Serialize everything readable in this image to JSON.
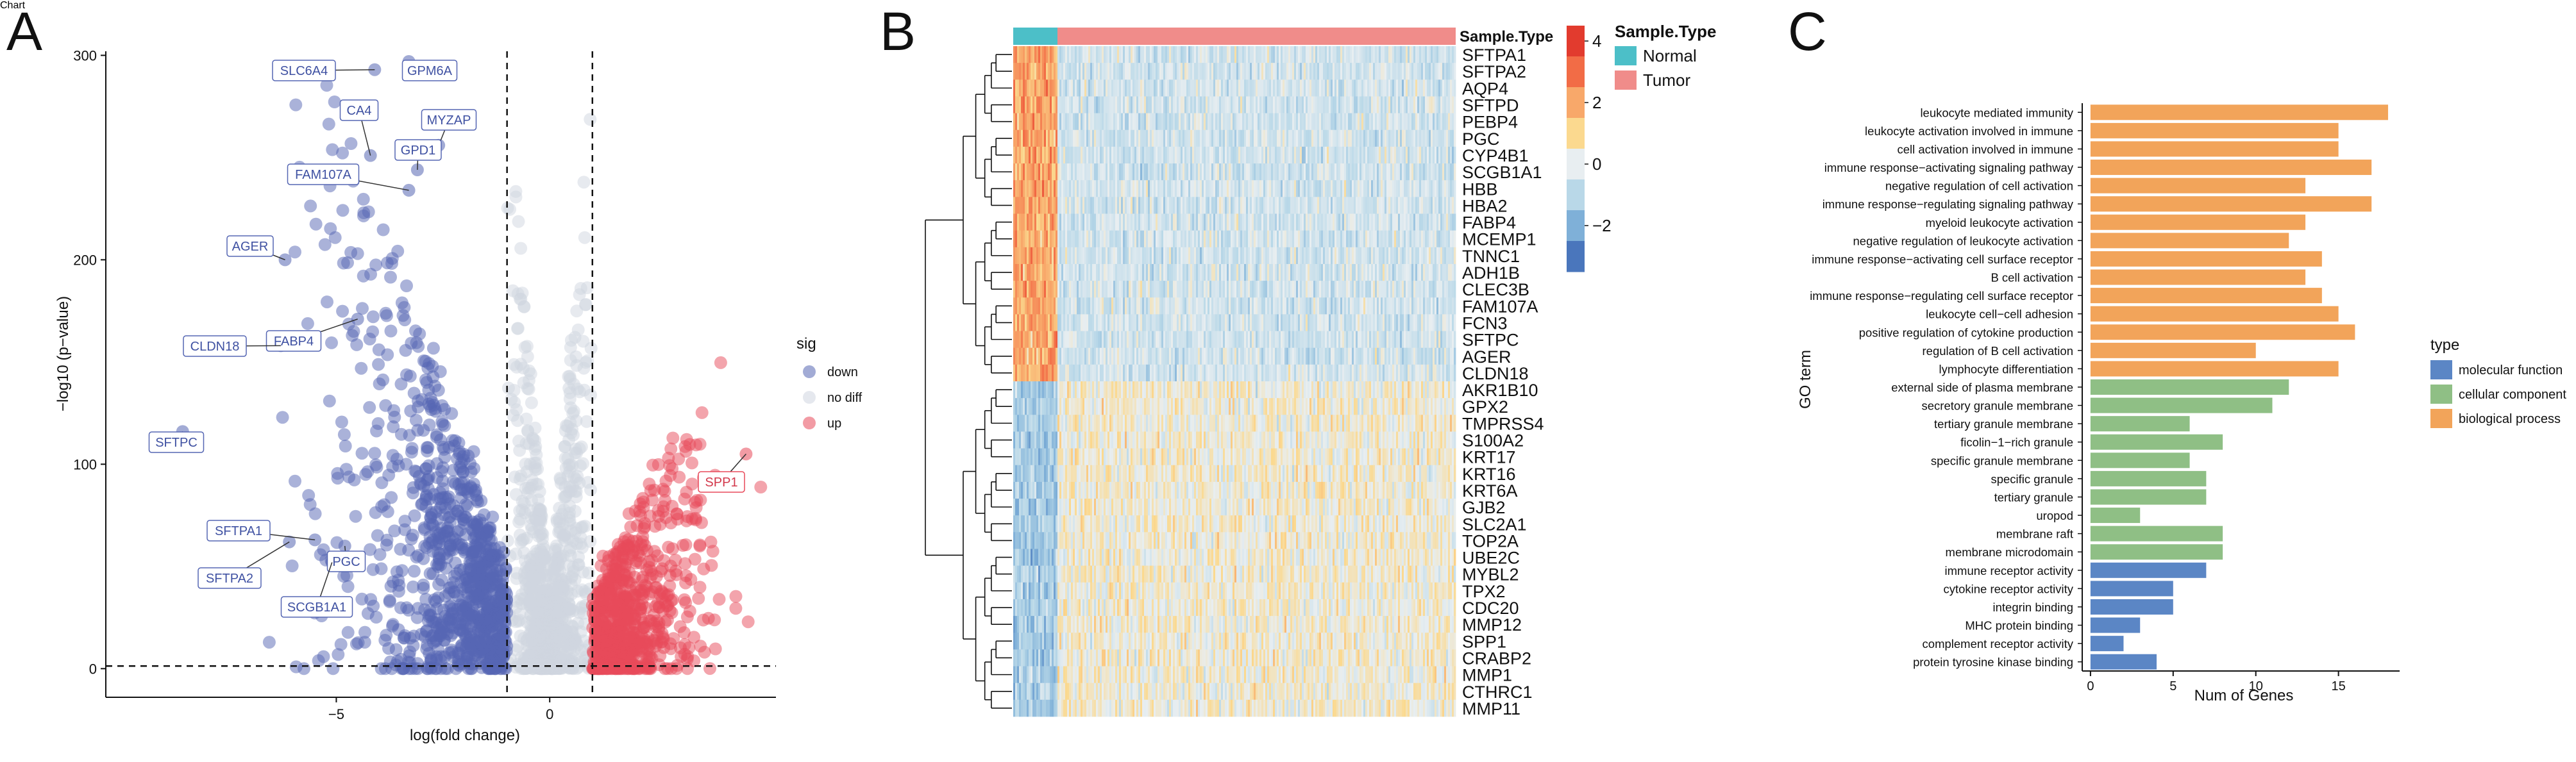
{
  "colors": {
    "down": "#5566b3",
    "nodiff": "#cfd6e0",
    "up": "#e8495a",
    "normal": "#4cbfc8",
    "tumor": "#f08c8a",
    "mf": "#5b86c5",
    "cc": "#8fbf85",
    "bp": "#f2a45a",
    "ink": "#111111"
  },
  "chart_data": [
    {
      "panel": "A",
      "type": "scatter",
      "title": "",
      "xlabel": "log(fold change)",
      "ylabel": "−log10 (p−value)",
      "xlim": [
        -10.4,
        5.3
      ],
      "ylim": [
        -14,
        302
      ],
      "xticks": [
        {
          "v": -5,
          "label": "−5"
        },
        {
          "v": 0,
          "label": "0"
        }
      ],
      "yticks": [
        0,
        100,
        200,
        300
      ],
      "thresholds": {
        "x": [
          -1,
          1
        ],
        "y": 1.3
      },
      "legend": {
        "title": "sig",
        "placement": "right",
        "entries": [
          {
            "key": "down",
            "label": "down"
          },
          {
            "key": "nodiff",
            "label": "no diff"
          },
          {
            "key": "up",
            "label": "up"
          }
        ]
      },
      "labeled_genes": [
        {
          "gene": "SLC6A4",
          "x": -4.1,
          "y": 293,
          "sig": "down"
        },
        {
          "gene": "GPM6A",
          "x": -3.3,
          "y": 297,
          "sig": "down"
        },
        {
          "gene": "CA4",
          "x": -4.2,
          "y": 251,
          "sig": "down"
        },
        {
          "gene": "MYZAP",
          "x": -2.6,
          "y": 256,
          "sig": "down"
        },
        {
          "gene": "GPD1",
          "x": -3.1,
          "y": 244,
          "sig": "down"
        },
        {
          "gene": "FAM107A",
          "x": -3.3,
          "y": 234,
          "sig": "down"
        },
        {
          "gene": "AGER",
          "x": -6.2,
          "y": 200,
          "sig": "down"
        },
        {
          "gene": "FABP4",
          "x": -4.5,
          "y": 171,
          "sig": "down"
        },
        {
          "gene": "CLDN18",
          "x": -6.3,
          "y": 158,
          "sig": "down"
        },
        {
          "gene": "SFTPC",
          "x": -8.6,
          "y": 116,
          "sig": "down"
        },
        {
          "gene": "SFTPA1",
          "x": -5.5,
          "y": 63,
          "sig": "down"
        },
        {
          "gene": "SFTPA2",
          "x": -6.1,
          "y": 62,
          "sig": "down"
        },
        {
          "gene": "PGC",
          "x": -4.8,
          "y": 60,
          "sig": "down"
        },
        {
          "gene": "SCGB1A1",
          "x": -5.1,
          "y": 52,
          "sig": "down"
        },
        {
          "gene": "SPP1",
          "x": 4.6,
          "y": 105,
          "sig": "up"
        }
      ],
      "label_text": [
        "SLC6A4",
        "GPM6A",
        "CA4",
        "MYZAP",
        "GPD1",
        "FAM107A",
        "AGER",
        "FABP4",
        "CLDN18",
        "SFTPC",
        "SFTPA1",
        "SFTPA2",
        "PGC",
        "SCGB1A1",
        "SPP1"
      ]
    },
    {
      "panel": "B",
      "type": "heatmap",
      "annotation_title": "Sample.Type",
      "annotation_groups": [
        {
          "key": "normal",
          "label": "Normal",
          "fraction": 0.1
        },
        {
          "key": "tumor",
          "label": "Tumor",
          "fraction": 0.9
        }
      ],
      "scale_ticks": [
        4,
        2,
        0,
        -2
      ],
      "scale_tick_labels": [
        "4",
        "2",
        "0",
        "−2"
      ],
      "scale_range": [
        -3.5,
        4.5
      ],
      "scale_stops": [
        "#e23b2e",
        "#f26c46",
        "#f8a86a",
        "#fbd98f",
        "#e8eef1",
        "#b9d8e8",
        "#7fb0d8",
        "#4a76bc"
      ],
      "genes_down": [
        "SFTPA1",
        "SFTPA2",
        "AQP4",
        "SFTPD",
        "PEBP4",
        "PGC",
        "CYP4B1",
        "SCGB1A1",
        "HBB",
        "HBA2",
        "FABP4",
        "MCEMP1",
        "TNNC1",
        "ADH1B",
        "CLEC3B",
        "FAM107A",
        "FCN3",
        "SFTPC",
        "AGER",
        "CLDN18"
      ],
      "genes_up": [
        "AKR1B10",
        "GPX2",
        "TMPRSS4",
        "S100A2",
        "KRT17",
        "KRT16",
        "KRT6A",
        "GJB2",
        "SLC2A1",
        "TOP2A",
        "UBE2C",
        "MYBL2",
        "TPX2",
        "CDC20",
        "MMP12",
        "SPP1",
        "CRABP2",
        "MMP1",
        "CTHRC1",
        "MMP11"
      ]
    },
    {
      "panel": "C",
      "type": "bar",
      "orientation": "horizontal",
      "xlabel": "Num of Genes",
      "ylabel": "GO term",
      "xlim": [
        -0.5,
        18.7
      ],
      "xticks": [
        0,
        5,
        10,
        15
      ],
      "legend": {
        "title": "type",
        "placement": "right",
        "entries": [
          {
            "key": "mf",
            "label": "molecular function"
          },
          {
            "key": "cc",
            "label": "cellular component"
          },
          {
            "key": "bp",
            "label": "biological process"
          }
        ]
      },
      "bars": [
        {
          "term": "leukocyte mediated immunity",
          "value": 18,
          "type": "bp"
        },
        {
          "term": "leukocyte activation involved in immune",
          "value": 15,
          "type": "bp"
        },
        {
          "term": "cell activation involved in immune",
          "value": 15,
          "type": "bp"
        },
        {
          "term": "immune response−activating signaling pathway",
          "value": 17,
          "type": "bp"
        },
        {
          "term": "negative regulation of cell activation",
          "value": 13,
          "type": "bp"
        },
        {
          "term": "immune response−regulating signaling pathway",
          "value": 17,
          "type": "bp"
        },
        {
          "term": "myeloid leukocyte activation",
          "value": 13,
          "type": "bp"
        },
        {
          "term": "negative regulation of leukocyte activation",
          "value": 12,
          "type": "bp"
        },
        {
          "term": "immune response−activating cell surface receptor",
          "value": 14,
          "type": "bp"
        },
        {
          "term": "B cell activation",
          "value": 13,
          "type": "bp"
        },
        {
          "term": "immune response−regulating cell surface receptor",
          "value": 14,
          "type": "bp"
        },
        {
          "term": "leukocyte cell−cell adhesion",
          "value": 15,
          "type": "bp"
        },
        {
          "term": "positive regulation of cytokine production",
          "value": 16,
          "type": "bp"
        },
        {
          "term": "regulation of B cell activation",
          "value": 10,
          "type": "bp"
        },
        {
          "term": "lymphocyte differentiation",
          "value": 15,
          "type": "bp"
        },
        {
          "term": "external side of plasma membrane",
          "value": 12,
          "type": "cc"
        },
        {
          "term": "secretory granule membrane",
          "value": 11,
          "type": "cc"
        },
        {
          "term": "tertiary granule membrane",
          "value": 6,
          "type": "cc"
        },
        {
          "term": "ficolin−1−rich granule",
          "value": 8,
          "type": "cc"
        },
        {
          "term": "specific granule membrane",
          "value": 6,
          "type": "cc"
        },
        {
          "term": "specific granule",
          "value": 7,
          "type": "cc"
        },
        {
          "term": "tertiary granule",
          "value": 7,
          "type": "cc"
        },
        {
          "term": "uropod",
          "value": 3,
          "type": "cc"
        },
        {
          "term": "membrane raft",
          "value": 8,
          "type": "cc"
        },
        {
          "term": "membrane microdomain",
          "value": 8,
          "type": "cc"
        },
        {
          "term": "immune receptor activity",
          "value": 7,
          "type": "mf"
        },
        {
          "term": "cytokine receptor activity",
          "value": 5,
          "type": "mf"
        },
        {
          "term": "integrin binding",
          "value": 5,
          "type": "mf"
        },
        {
          "term": "MHC protein binding",
          "value": 3,
          "type": "mf"
        },
        {
          "term": "complement receptor activity",
          "value": 2,
          "type": "mf"
        },
        {
          "term": "protein tyrosine kinase binding",
          "value": 4,
          "type": "mf"
        }
      ]
    }
  ],
  "panels": {
    "a": "A",
    "b": "B",
    "c": "C"
  }
}
